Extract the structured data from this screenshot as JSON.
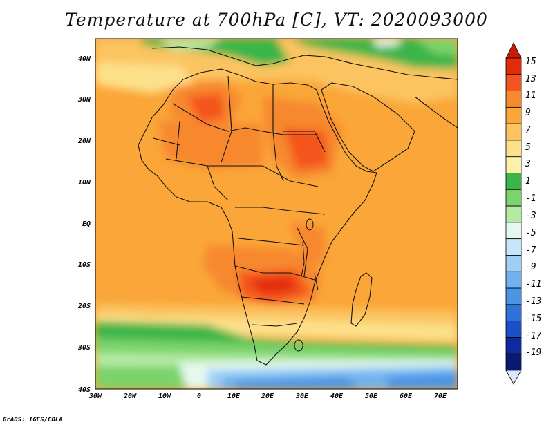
{
  "title": "Temperature at 700hPa [C], VT: 2020093000",
  "credit": "GrADS: IGES/COLA",
  "map": {
    "longitude_labels": [
      "30W",
      "20W",
      "10W",
      "0",
      "10E",
      "20E",
      "30E",
      "40E",
      "50E",
      "60E",
      "70E"
    ],
    "latitude_labels": [
      "40N",
      "30N",
      "20N",
      "10N",
      "EQ",
      "10S",
      "20S",
      "30S",
      "40S"
    ],
    "extent": {
      "lon_min": -30,
      "lon_max": 75,
      "lat_min": -40,
      "lat_max": 44
    }
  },
  "colorbar": {
    "labels": [
      "15",
      "13",
      "11",
      "9",
      "7",
      "5",
      "3",
      "1",
      "-1",
      "-3",
      "-5",
      "-7",
      "-9",
      "-11",
      "-13",
      "-15",
      "-17",
      "-19"
    ],
    "colors": [
      "#e32b0a",
      "#f4551e",
      "#f7882e",
      "#faa638",
      "#fbc460",
      "#fde08a",
      "#fbf2a8",
      "#3ab54a",
      "#7ad36b",
      "#b4eaa4",
      "#e6f8ee",
      "#c6e6fb",
      "#9ed0f6",
      "#6fb2ef",
      "#4a94e6",
      "#2e73d9",
      "#1c4ec5",
      "#0f2aa0",
      "#0a1a6e"
    ],
    "top_arrow_color": "#cc1a0a",
    "bottom_arrow_color": "#dde6ff"
  }
}
